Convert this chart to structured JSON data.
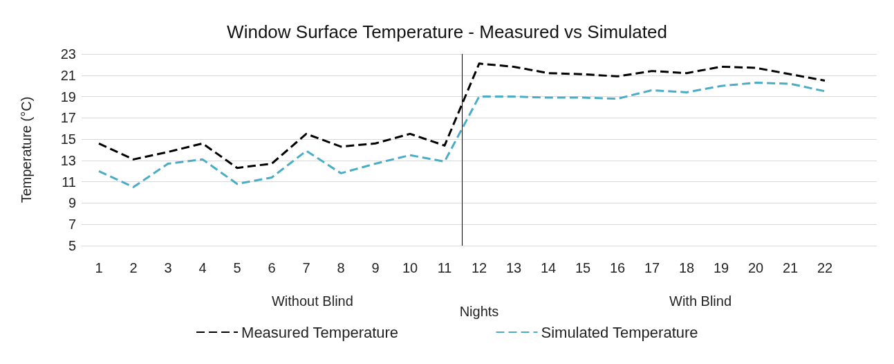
{
  "chart_data": {
    "type": "line",
    "title": "Window Surface Temperature - Measured vs Simulated",
    "xlabel": "Nights",
    "ylabel": "Temperature (°C)",
    "x": [
      1,
      2,
      3,
      4,
      5,
      6,
      7,
      8,
      9,
      10,
      11,
      12,
      13,
      14,
      15,
      16,
      17,
      18,
      19,
      20,
      21,
      22
    ],
    "xlim": [
      0.5,
      23.5
    ],
    "xticks": [
      1,
      2,
      3,
      4,
      5,
      6,
      7,
      8,
      9,
      10,
      11,
      12,
      13,
      14,
      15,
      16,
      17,
      18,
      19,
      20,
      21,
      22
    ],
    "ylim": [
      5,
      23
    ],
    "yticks": [
      5,
      7,
      9,
      11,
      13,
      15,
      17,
      19,
      21,
      23
    ],
    "series": [
      {
        "name": "Measured Temperature",
        "color": "#000000",
        "line_style": "dashed",
        "values": [
          14.6,
          13.1,
          13.8,
          14.6,
          12.3,
          12.7,
          15.5,
          14.3,
          14.6,
          15.5,
          14.4,
          22.1,
          21.8,
          21.2,
          21.1,
          20.9,
          21.4,
          21.2,
          21.8,
          21.7,
          21.1,
          20.5
        ]
      },
      {
        "name": "Simulated Temperature",
        "color": "#4bacc6",
        "line_style": "dashed",
        "values": [
          12.0,
          10.5,
          12.7,
          13.1,
          10.8,
          11.4,
          13.9,
          11.8,
          12.7,
          13.5,
          12.9,
          19.0,
          19.0,
          18.9,
          18.9,
          18.8,
          19.6,
          19.4,
          20.0,
          20.3,
          20.2,
          19.5
        ]
      }
    ],
    "ref_lines": [
      {
        "axis": "x",
        "value": 11.5,
        "color": "#000000"
      }
    ],
    "annotations": [
      "Without Blind",
      "With Blind"
    ],
    "grid": "y",
    "legend": "bottom",
    "marker": "none"
  }
}
